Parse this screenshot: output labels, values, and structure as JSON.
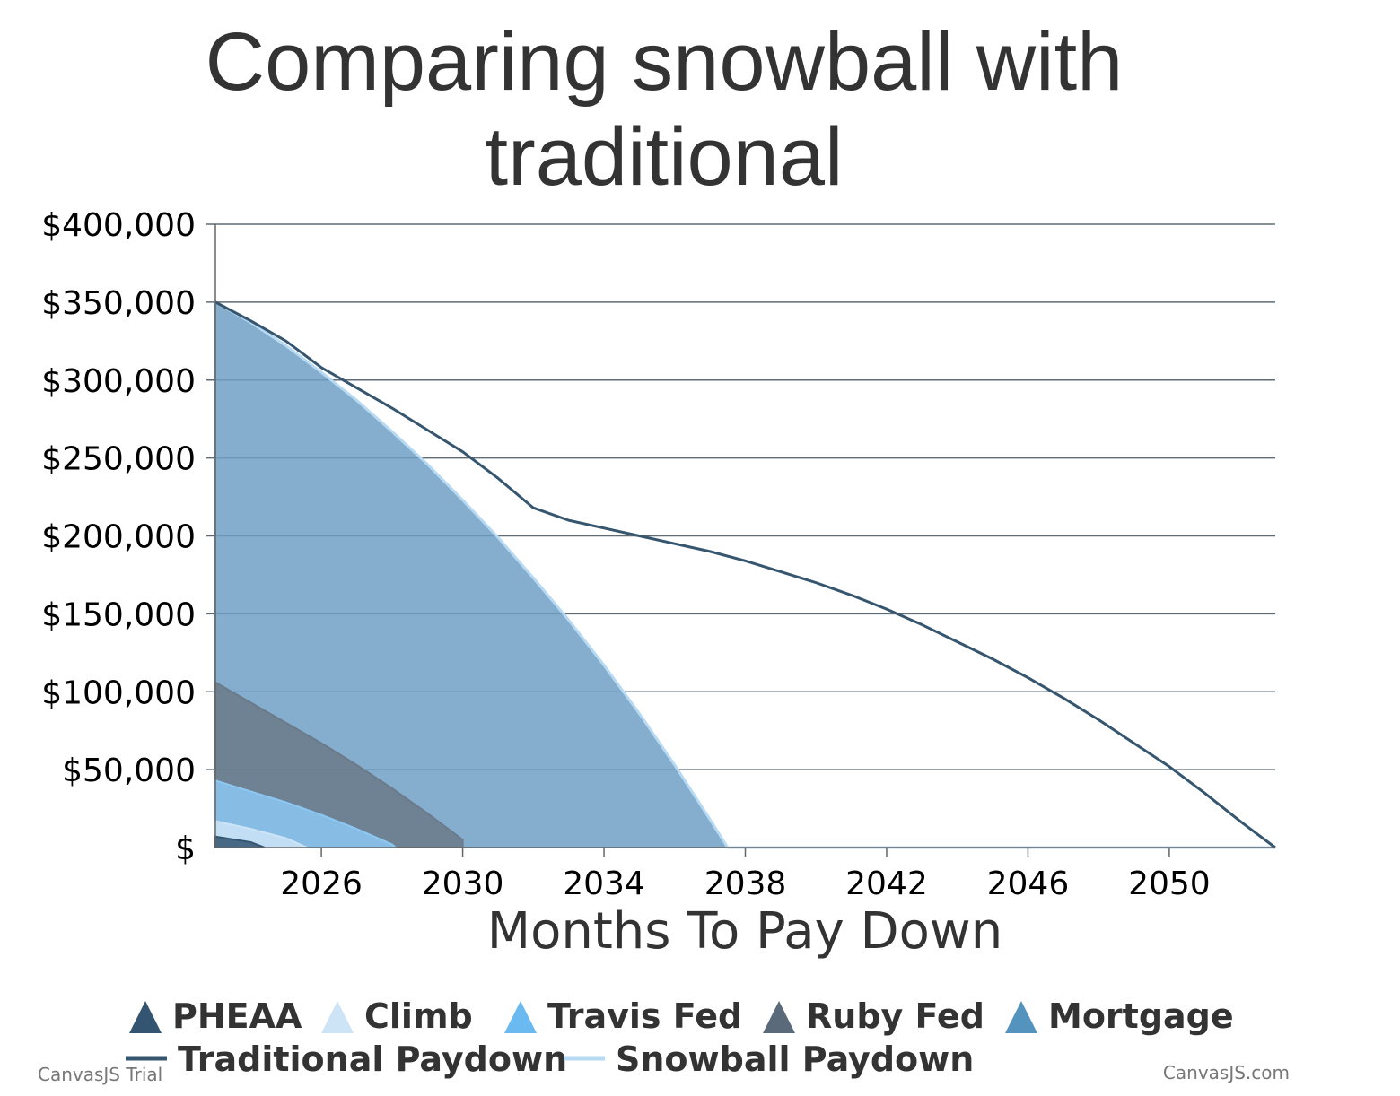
{
  "chart_data": {
    "type": "area",
    "title_lines": [
      "Comparing snowball with",
      "traditional"
    ],
    "xlabel": "Months To Pay Down",
    "ylabel": "",
    "x_range": [
      2023.0,
      2053.0
    ],
    "ylim": [
      0,
      400000
    ],
    "x_ticks": [
      2026,
      2030,
      2034,
      2038,
      2042,
      2046,
      2050
    ],
    "x_tick_labels": [
      "2026",
      "2030",
      "2034",
      "2038",
      "2042",
      "2046",
      "2050"
    ],
    "y_ticks": [
      0,
      50000,
      100000,
      150000,
      200000,
      250000,
      300000,
      350000,
      400000
    ],
    "y_tick_labels": [
      "$",
      "$50,000",
      "$100,000",
      "$150,000",
      "$200,000",
      "$250,000",
      "$300,000",
      "$350,000",
      "$400,000"
    ],
    "grid": true,
    "legend_position": "bottom",
    "series": [
      {
        "name": "Mortgage",
        "kind": "area",
        "color": "#6f9fc5",
        "points": [
          [
            2023.0,
            350000
          ],
          [
            2024.0,
            337000
          ],
          [
            2025.0,
            322000
          ],
          [
            2026.0,
            305000
          ],
          [
            2027.0,
            287000
          ],
          [
            2028.0,
            267000
          ],
          [
            2029.0,
            246000
          ],
          [
            2030.0,
            223000
          ],
          [
            2031.0,
            199000
          ],
          [
            2032.0,
            173000
          ],
          [
            2033.0,
            146000
          ],
          [
            2034.0,
            117000
          ],
          [
            2035.0,
            86000
          ],
          [
            2036.0,
            53000
          ],
          [
            2037.0,
            18000
          ],
          [
            2037.5,
            0
          ]
        ]
      },
      {
        "name": "Ruby Fed",
        "kind": "area",
        "color": "#6b7a89",
        "points": [
          [
            2023.0,
            106000
          ],
          [
            2024.0,
            93000
          ],
          [
            2025.0,
            80000
          ],
          [
            2026.0,
            67000
          ],
          [
            2027.0,
            53000
          ],
          [
            2028.0,
            38000
          ],
          [
            2029.0,
            22000
          ],
          [
            2030.0,
            5000
          ],
          [
            2030.0,
            0
          ]
        ]
      },
      {
        "name": "Travis Fed",
        "kind": "area",
        "color": "#8cc8f3",
        "points": [
          [
            2023.0,
            43000
          ],
          [
            2024.0,
            36000
          ],
          [
            2025.0,
            29000
          ],
          [
            2026.0,
            21000
          ],
          [
            2027.0,
            12000
          ],
          [
            2028.0,
            2000
          ],
          [
            2028.1,
            0
          ]
        ]
      },
      {
        "name": "Climb",
        "kind": "area",
        "color": "#cde4f7",
        "points": [
          [
            2023.0,
            17000
          ],
          [
            2024.0,
            12000
          ],
          [
            2025.0,
            6000
          ],
          [
            2025.6,
            0
          ]
        ]
      },
      {
        "name": "PHEAA",
        "kind": "area",
        "color": "#335571",
        "points": [
          [
            2023.0,
            7000
          ],
          [
            2024.0,
            3500
          ],
          [
            2024.4,
            0
          ]
        ]
      },
      {
        "name": "Snowball Paydown",
        "kind": "line",
        "color": "#b7d9f2",
        "points": [
          [
            2023.0,
            350000
          ],
          [
            2024.0,
            337000
          ],
          [
            2025.0,
            322000
          ],
          [
            2026.0,
            305000
          ],
          [
            2027.0,
            287000
          ],
          [
            2028.0,
            267000
          ],
          [
            2029.0,
            246000
          ],
          [
            2030.0,
            223000
          ],
          [
            2031.0,
            199000
          ],
          [
            2032.0,
            173000
          ],
          [
            2033.0,
            146000
          ],
          [
            2034.0,
            117000
          ],
          [
            2035.0,
            86000
          ],
          [
            2036.0,
            53000
          ],
          [
            2037.0,
            18000
          ],
          [
            2037.5,
            0
          ],
          [
            2053.0,
            0
          ]
        ]
      },
      {
        "name": "Traditional Paydown",
        "kind": "line",
        "color": "#36566f",
        "points": [
          [
            2023.0,
            350000
          ],
          [
            2024.0,
            338000
          ],
          [
            2025.0,
            325000
          ],
          [
            2026.0,
            308000
          ],
          [
            2027.0,
            295000
          ],
          [
            2028.0,
            282000
          ],
          [
            2029.0,
            268000
          ],
          [
            2030.0,
            254000
          ],
          [
            2031.0,
            237000
          ],
          [
            2032.0,
            218000
          ],
          [
            2033.0,
            210000
          ],
          [
            2034.0,
            205000
          ],
          [
            2035.0,
            200000
          ],
          [
            2036.0,
            195000
          ],
          [
            2037.0,
            190000
          ],
          [
            2038.0,
            184000
          ],
          [
            2039.0,
            177000
          ],
          [
            2040.0,
            170000
          ],
          [
            2041.0,
            162000
          ],
          [
            2042.0,
            153000
          ],
          [
            2043.0,
            143000
          ],
          [
            2044.0,
            132000
          ],
          [
            2045.0,
            121000
          ],
          [
            2046.0,
            109000
          ],
          [
            2047.0,
            96000
          ],
          [
            2048.0,
            82000
          ],
          [
            2049.0,
            67000
          ],
          [
            2050.0,
            52000
          ],
          [
            2051.0,
            35000
          ],
          [
            2052.0,
            17000
          ],
          [
            2053.0,
            0
          ]
        ]
      }
    ],
    "legend": [
      {
        "name": "PHEAA",
        "marker": "triangle",
        "color": "#335571"
      },
      {
        "name": "Climb",
        "marker": "triangle",
        "color": "#cde4f7"
      },
      {
        "name": "Travis Fed",
        "marker": "triangle",
        "color": "#6ab9f0"
      },
      {
        "name": "Ruby Fed",
        "marker": "triangle",
        "color": "#5a6a7a"
      },
      {
        "name": "Mortgage",
        "marker": "triangle",
        "color": "#5593bf"
      },
      {
        "name": "Traditional Paydown",
        "marker": "line",
        "color": "#36566f"
      },
      {
        "name": "Snowball Paydown",
        "marker": "line",
        "color": "#b7d9f2"
      }
    ]
  },
  "credits": {
    "left": "CanvasJS Trial",
    "right": "CanvasJS.com"
  }
}
